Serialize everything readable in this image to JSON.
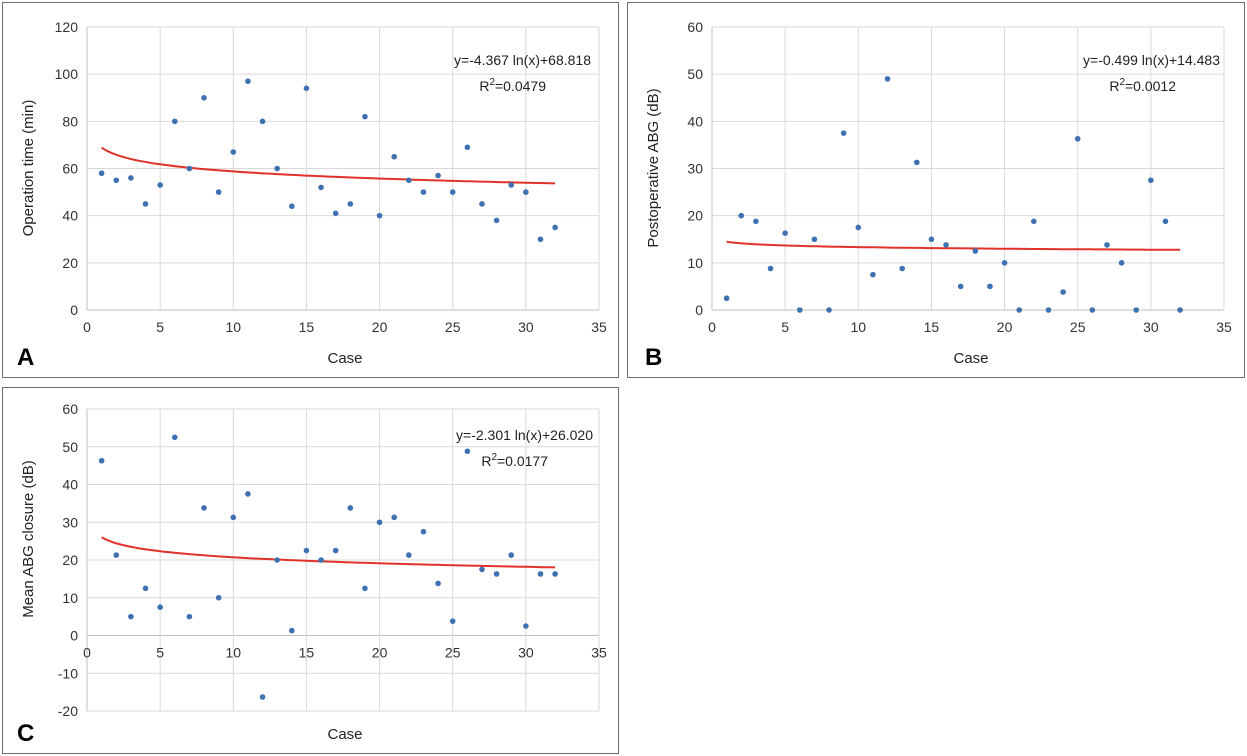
{
  "chart_data": [
    {
      "type": "scatter",
      "panel_label": "A",
      "xlabel": "Case",
      "ylabel": "Operation time (min)",
      "xlim": [
        0,
        35
      ],
      "ylim": [
        0,
        120
      ],
      "xticks": [
        0,
        5,
        10,
        15,
        20,
        25,
        30,
        35
      ],
      "yticks": [
        0,
        20,
        40,
        60,
        80,
        100,
        120
      ],
      "grid": true,
      "x": [
        1,
        2,
        3,
        4,
        5,
        6,
        7,
        8,
        9,
        10,
        11,
        12,
        13,
        14,
        15,
        16,
        17,
        18,
        19,
        20,
        21,
        22,
        23,
        24,
        25,
        26,
        27,
        28,
        29,
        30,
        31,
        32
      ],
      "y": [
        58,
        55,
        56,
        45,
        53,
        80,
        60,
        90,
        50,
        67,
        97,
        80,
        60,
        44,
        94,
        52,
        41,
        45,
        82,
        40,
        65,
        55,
        50,
        57,
        50,
        69,
        45,
        38,
        53,
        50,
        30,
        35
      ],
      "trendline": {
        "type": "logarithmic",
        "a": -4.367,
        "b": 68.818,
        "x_range": [
          1,
          32
        ]
      },
      "equation": "y=-4.367 ln(x)+68.818",
      "r2_prefix": "R",
      "r2_sup": "2",
      "r2_value": "=0.0479",
      "colors": {
        "points": "#3e70b2",
        "trend": "#e0322a",
        "grid": "#d9d9d9"
      }
    },
    {
      "type": "scatter",
      "panel_label": "B",
      "xlabel": "Case",
      "ylabel": "Postoperative ABG (dB)",
      "xlim": [
        0,
        35
      ],
      "ylim": [
        0,
        60
      ],
      "xticks": [
        0,
        5,
        10,
        15,
        20,
        25,
        30,
        35
      ],
      "yticks": [
        0,
        10,
        20,
        30,
        40,
        50,
        60
      ],
      "grid": true,
      "x": [
        1,
        2,
        3,
        4,
        5,
        6,
        7,
        8,
        9,
        10,
        11,
        12,
        13,
        14,
        15,
        16,
        17,
        18,
        19,
        20,
        21,
        22,
        23,
        24,
        25,
        26,
        27,
        28,
        29,
        30,
        31,
        32
      ],
      "y": [
        2.5,
        20,
        18.8,
        8.8,
        16.3,
        0,
        15,
        0,
        37.5,
        17.5,
        7.5,
        49,
        8.8,
        31.3,
        15,
        13.8,
        5,
        12.5,
        5,
        10,
        0,
        18.8,
        0,
        3.8,
        36.3,
        0,
        13.8,
        10,
        0,
        27.5,
        18.8,
        0
      ],
      "trendline": {
        "type": "logarithmic",
        "a": -0.499,
        "b": 14.483,
        "x_range": [
          1,
          32
        ]
      },
      "equation": "y=-0.499 ln(x)+14.483",
      "r2_prefix": "R",
      "r2_sup": "2",
      "r2_value": "=0.0012",
      "colors": {
        "points": "#3e70b2",
        "trend": "#e0322a",
        "grid": "#d9d9d9"
      }
    },
    {
      "type": "scatter",
      "panel_label": "C",
      "xlabel": "Case",
      "ylabel": "Mean ABG closure (dB)",
      "xlim": [
        0,
        35
      ],
      "ylim": [
        -20,
        60
      ],
      "xticks": [
        0,
        5,
        10,
        15,
        20,
        25,
        30,
        35
      ],
      "yticks": [
        -20,
        -10,
        0,
        10,
        20,
        30,
        40,
        50,
        60
      ],
      "grid": true,
      "x": [
        1,
        2,
        3,
        4,
        5,
        6,
        7,
        8,
        9,
        10,
        11,
        12,
        13,
        14,
        15,
        16,
        17,
        18,
        19,
        20,
        21,
        22,
        23,
        24,
        25,
        26,
        27,
        28,
        29,
        30,
        31,
        32
      ],
      "y": [
        46.3,
        21.3,
        5,
        12.5,
        7.5,
        52.5,
        5,
        33.8,
        10,
        31.3,
        37.5,
        -16.3,
        20,
        1.3,
        22.5,
        20,
        22.5,
        33.8,
        12.5,
        30,
        31.3,
        21.3,
        27.5,
        13.8,
        3.8,
        48.8,
        17.5,
        16.3,
        21.3,
        2.5,
        16.3,
        16.3
      ],
      "trendline": {
        "type": "logarithmic",
        "a": -2.301,
        "b": 26.02,
        "x_range": [
          1,
          32
        ]
      },
      "equation": "y=-2.301 ln(x)+26.020",
      "r2_prefix": "R",
      "r2_sup": "2",
      "r2_value": "=0.0177",
      "colors": {
        "points": "#3e70b2",
        "trend": "#e0322a",
        "grid": "#d9d9d9"
      }
    }
  ]
}
